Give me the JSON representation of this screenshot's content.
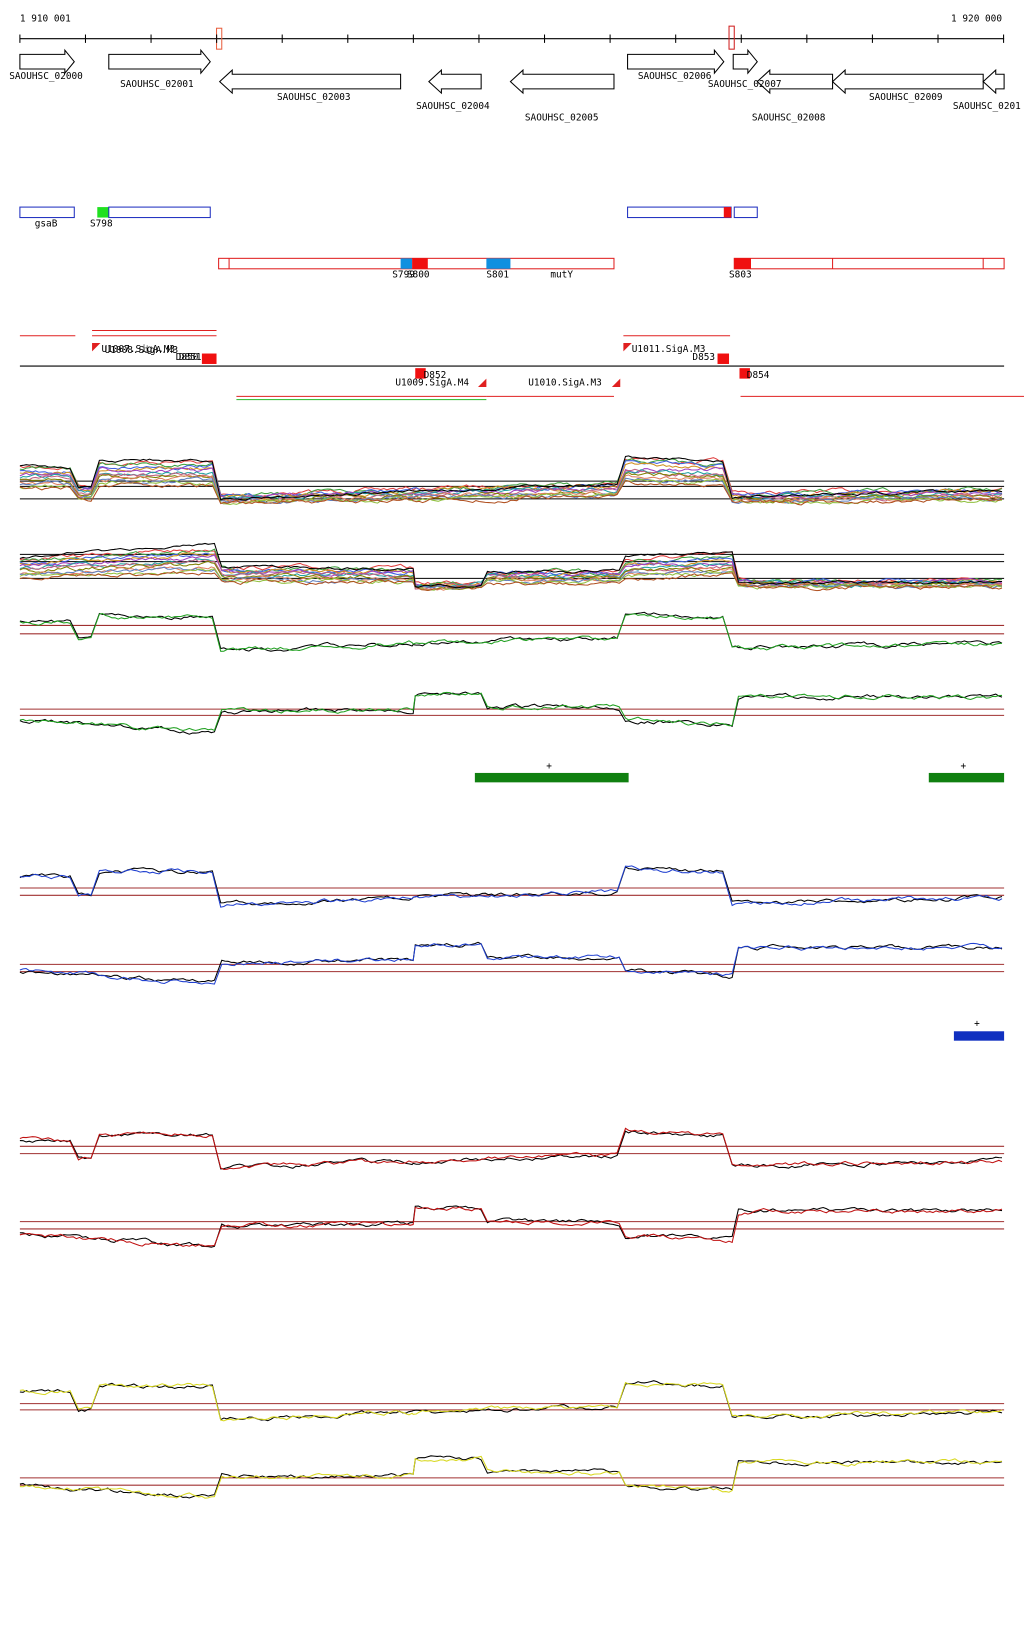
{
  "ruler": {
    "start": "1 910 001",
    "end": "1 920 000"
  },
  "genes": [
    "SAOUHSC_02000",
    "SAOUHSC_02001",
    "SAOUHSC_02003",
    "SAOUHSC_02004",
    "SAOUHSC_02005",
    "SAOUHSC_02006",
    "SAOUHSC_02007",
    "SAOUHSC_02008",
    "SAOUHSC_02009",
    "SAOUHSC_0201"
  ],
  "features": [
    "gsaB",
    "S798",
    "S799",
    "S800",
    "S801",
    "mutY",
    "S803"
  ],
  "promoters": [
    "U1007.SigA.M3",
    "U1008.SigA.M3",
    "D850",
    "D851",
    "D852",
    "U1009.SigA.M4",
    "U1010.SigA.M3",
    "U1011.SigA.M3",
    "D853",
    "D854"
  ],
  "segments": [
    "+",
    "+",
    "+"
  ]
}
